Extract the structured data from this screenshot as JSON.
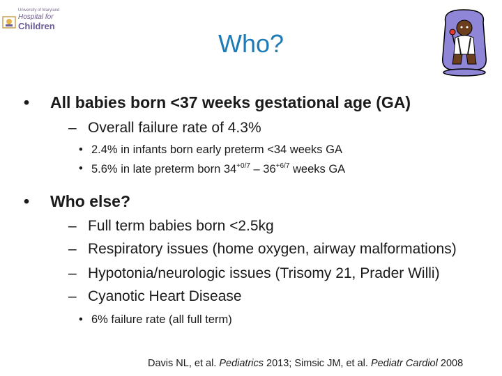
{
  "logo": {
    "small_text": "University of Maryland",
    "hospital": "Hospital for",
    "children": "Children"
  },
  "slide": {
    "title": "Who?",
    "bullet1": {
      "text": "All babies born <37 weeks gestational age (GA)",
      "sub": "Overall failure rate of 4.3%",
      "subsub1": "2.4% in infants born early preterm <34 weeks GA",
      "subsub2": {
        "a": "5.6% in late preterm born 34",
        "sup1": "+0/7",
        "b": " – 36",
        "sup2": "+6/7",
        "c": " weeks GA"
      }
    },
    "bullet2": {
      "text": "Who else?",
      "items": [
        "Full term babies born <2.5kg",
        "Respiratory issues (home oxygen, airway malformations)",
        "Hypotonia/neurologic issues (Trisomy 21, Prader Willi)",
        "Cyanotic Heart Disease"
      ],
      "subsub": "6% failure rate (all full term)"
    },
    "citation": {
      "p1": "Davis NL, et al. ",
      "j1": "Pediatrics",
      "p2": " 2013; Simsic JM, et al. ",
      "j2": "Pediatr Cardiol",
      "p3": " 2008"
    }
  },
  "symbols": {
    "bullet": "•",
    "dash": "–"
  },
  "colors": {
    "title": "#1f7bb5",
    "logo": "#6b5b95",
    "seat": "#8f86d8"
  }
}
